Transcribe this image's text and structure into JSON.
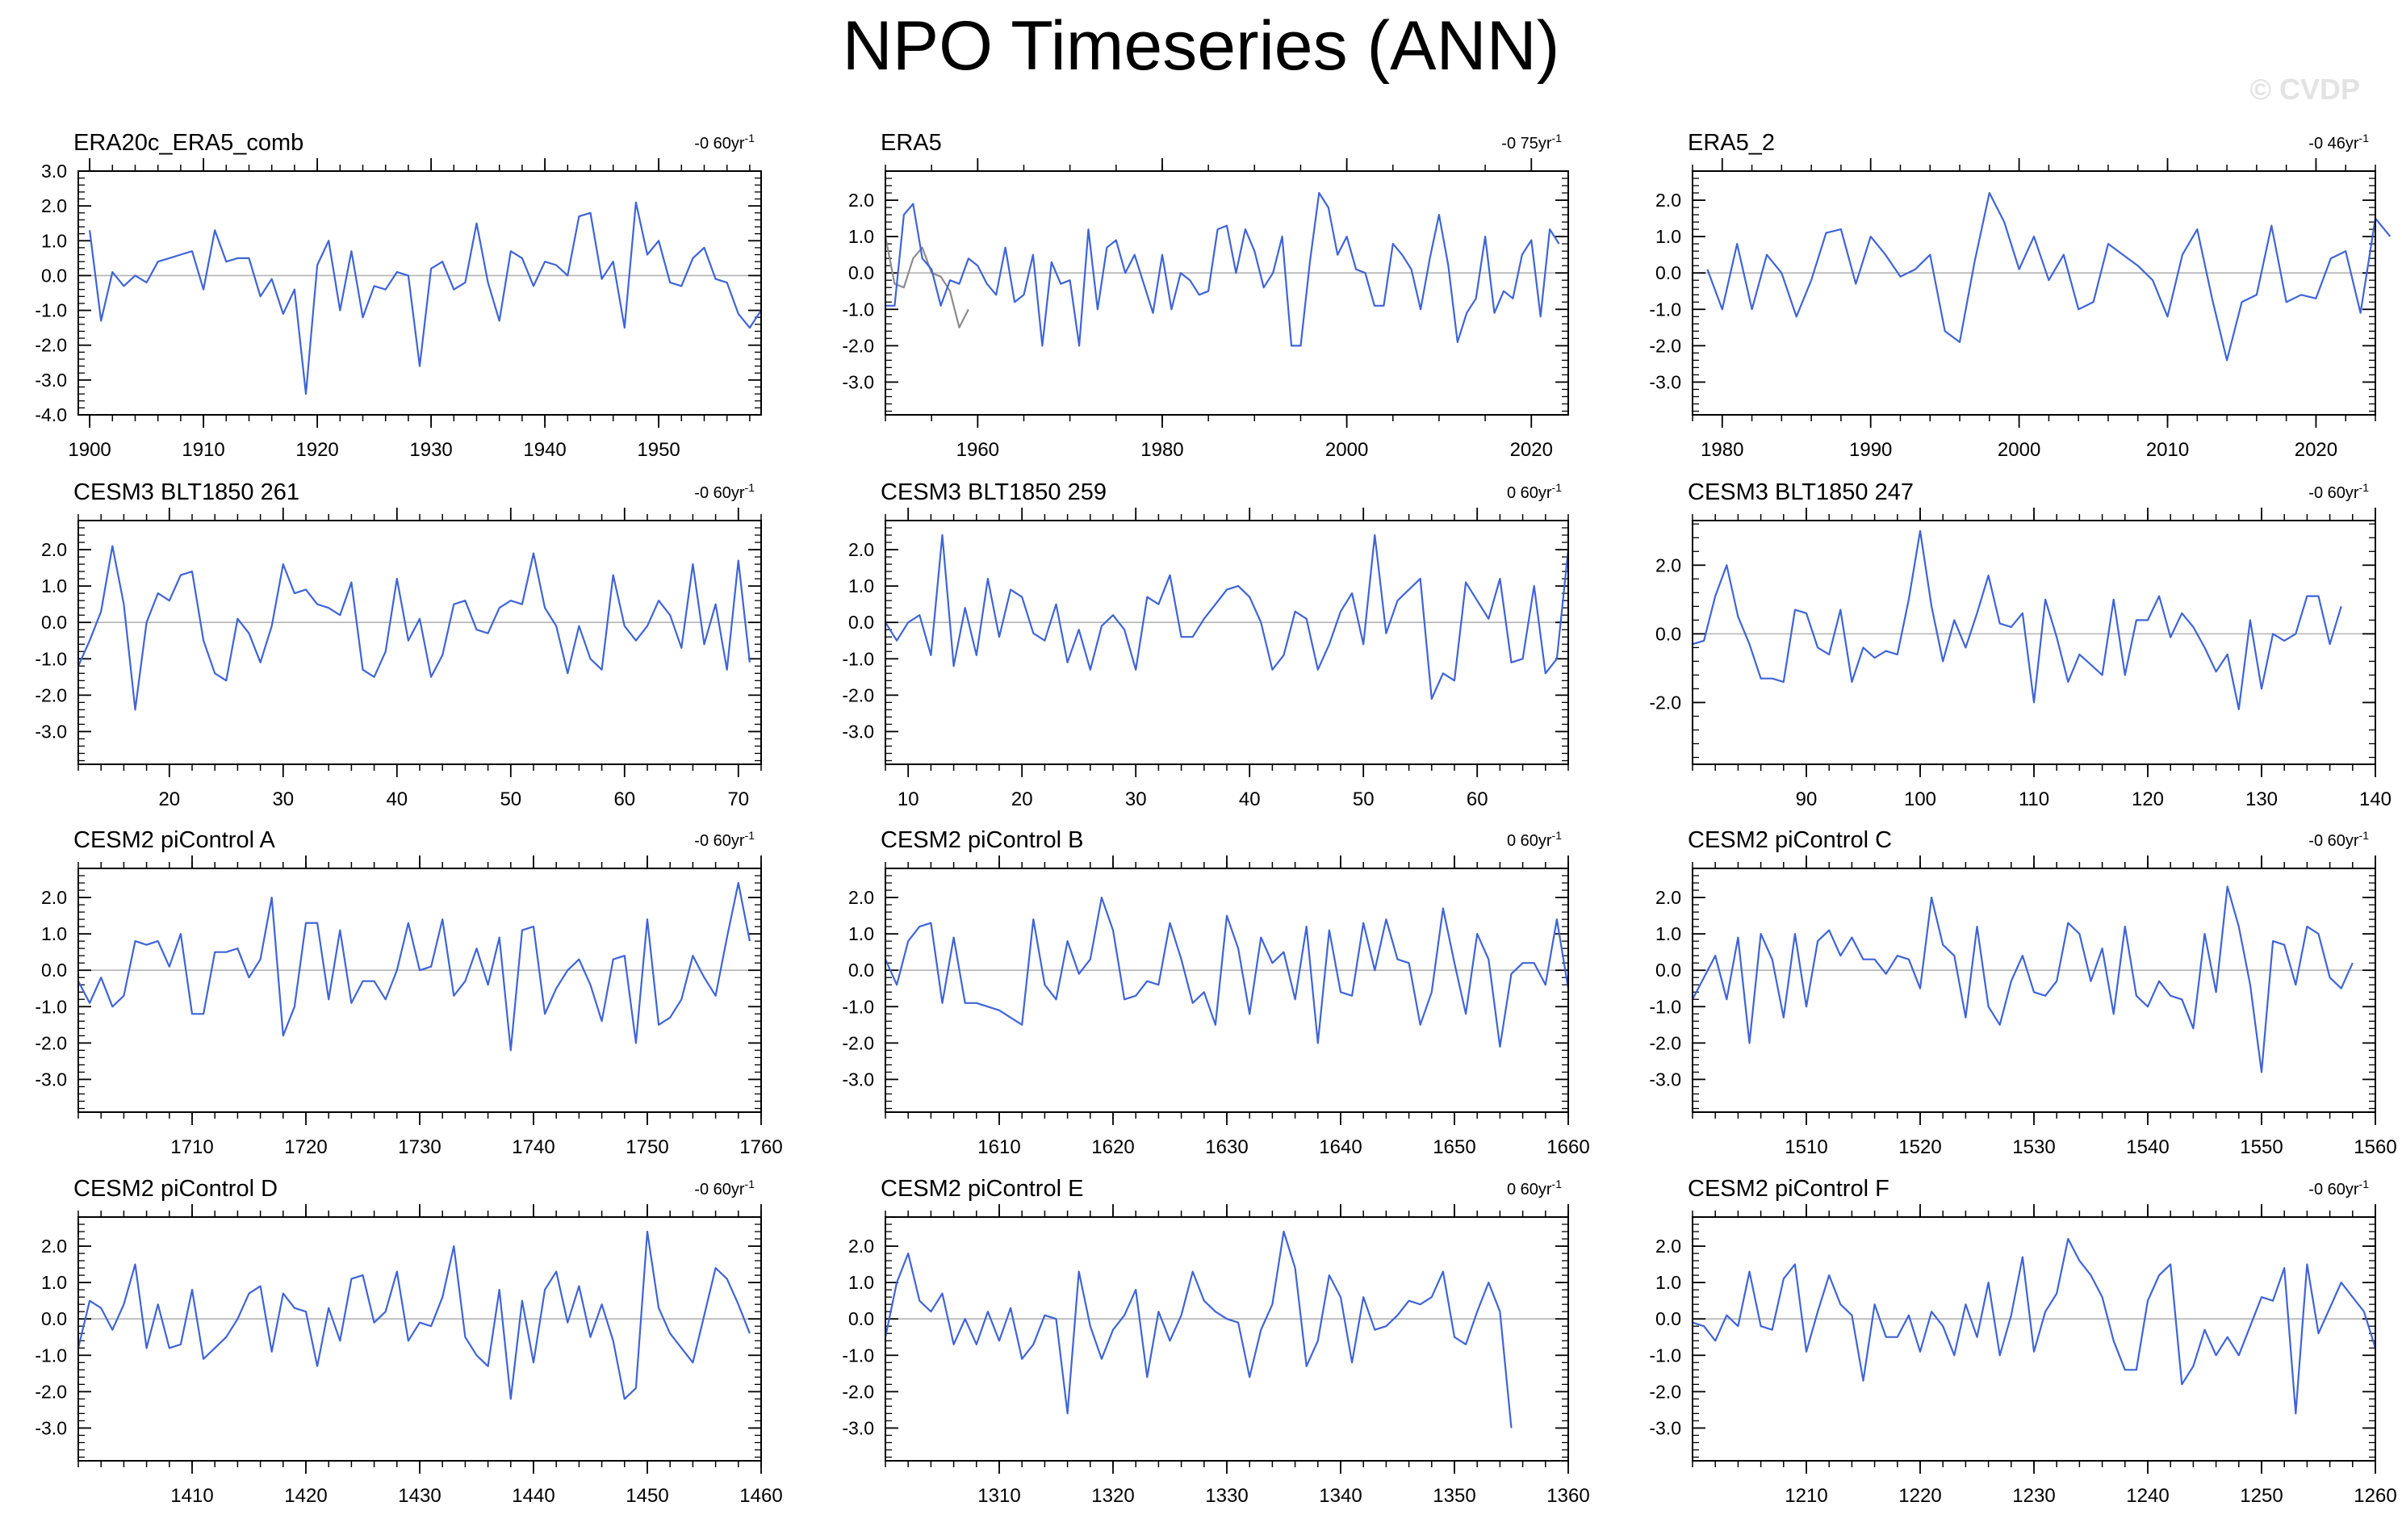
{
  "title": "NPO Timeseries (ANN)",
  "watermark": "© CVDP",
  "colors": {
    "line": "#3f64d6",
    "overlay": "#8c8c8c",
    "zero": "#b4b4b4",
    "frame": "#000000"
  },
  "chart_data": [
    {
      "type": "line",
      "title": "ERA20c_ERA5_comb",
      "trend": "-0 60yr",
      "trend_unit": "-1",
      "xlim": [
        1899,
        1959
      ],
      "ylim": [
        -4.0,
        3.0
      ],
      "yticks": [
        "3.0",
        "2.0",
        "1.0",
        "0.0",
        "-1.0",
        "-2.0",
        "-3.0",
        "-4.0"
      ],
      "xticks": [
        1900,
        1910,
        1920,
        1930,
        1940,
        1950
      ],
      "series": [
        {
          "name": "NPO",
          "x0": 1900,
          "values": [
            1.3,
            -1.3,
            0.1,
            -0.3,
            0.0,
            -0.2,
            0.4,
            0.5,
            0.6,
            0.7,
            -0.4,
            1.3,
            0.4,
            0.5,
            0.5,
            -0.6,
            -0.1,
            -1.1,
            -0.4,
            -3.4,
            0.3,
            1.0,
            -1.0,
            0.7,
            -1.2,
            -0.3,
            -0.4,
            0.1,
            0.0,
            -2.6,
            0.2,
            0.4,
            -0.4,
            -0.2,
            1.5,
            -0.2,
            -1.3,
            0.7,
            0.5,
            -0.3,
            0.4,
            0.3,
            0.0,
            1.7,
            1.8,
            -0.1,
            0.4,
            -1.5,
            2.1,
            0.6,
            1.0,
            -0.2,
            -0.3,
            0.5,
            0.8,
            -0.1,
            -0.2,
            -1.1,
            -1.5,
            -1.0
          ]
        }
      ]
    },
    {
      "type": "line",
      "title": "ERA5",
      "trend": "-0 75yr",
      "trend_unit": "-1",
      "xlim": [
        1950,
        2024
      ],
      "ylim": [
        -3.9,
        2.8
      ],
      "yticks": [
        "2.0",
        "1.0",
        "0.0",
        "-1.0",
        "-2.0",
        "-3.0"
      ],
      "xticks": [
        1960,
        1980,
        2000,
        2020
      ],
      "series": [
        {
          "name": "ERA5",
          "x0": 1950,
          "values": [
            -0.9,
            -0.9,
            1.6,
            1.9,
            0.4,
            0.1,
            -0.9,
            -0.2,
            -0.3,
            0.4,
            0.2,
            -0.3,
            -0.6,
            0.7,
            -0.8,
            -0.6,
            0.5,
            -2.0,
            0.3,
            -0.3,
            -0.2,
            -2.0,
            1.2,
            -1.0,
            0.7,
            0.9,
            0.0,
            0.5,
            -0.3,
            -1.1,
            0.5,
            -1.0,
            0.0,
            -0.2,
            -0.6,
            -0.5,
            1.2,
            1.3,
            0.0,
            1.2,
            0.6,
            -0.4,
            0.0,
            1.0,
            -2.0,
            -2.0,
            0.3,
            2.2,
            1.8,
            0.5,
            1.0,
            0.1,
            0.0,
            -0.9,
            -0.9,
            0.8,
            0.5,
            0.1,
            -1.0,
            0.4,
            1.6,
            0.2,
            -1.9,
            -1.1,
            -0.7,
            1.0,
            -1.1,
            -0.5,
            -0.7,
            0.5,
            0.9,
            -1.2,
            1.2,
            0.8
          ]
        },
        {
          "name": "ERA20c overlap",
          "x0": 1950,
          "color": "overlay",
          "values": [
            1.0,
            -0.3,
            -0.4,
            0.4,
            0.7,
            0.0,
            -0.1,
            -0.5,
            -1.5,
            -1.0
          ]
        }
      ]
    },
    {
      "type": "line",
      "title": "ERA5_2",
      "trend": "-0 46yr",
      "trend_unit": "-1",
      "xlim": [
        1978,
        2024
      ],
      "ylim": [
        -3.9,
        2.8
      ],
      "yticks": [
        "2.0",
        "1.0",
        "0.0",
        "-1.0",
        "-2.0",
        "-3.0"
      ],
      "xticks": [
        1980,
        1990,
        2000,
        2010,
        2020
      ],
      "series": [
        {
          "name": "NPO",
          "x0": 1979,
          "values": [
            0.1,
            -1.0,
            0.8,
            -1.0,
            0.5,
            0.0,
            -1.2,
            -0.2,
            1.1,
            1.2,
            -0.3,
            1.0,
            0.5,
            -0.1,
            0.1,
            0.5,
            -1.6,
            -1.9,
            0.3,
            2.2,
            1.4,
            0.1,
            1.0,
            -0.2,
            0.5,
            -1.0,
            -0.8,
            0.8,
            0.5,
            0.2,
            -0.2,
            -1.2,
            0.5,
            1.2,
            -0.7,
            -2.4,
            -0.8,
            -0.6,
            1.3,
            -0.8,
            -0.6,
            -0.7,
            0.4,
            0.6,
            -1.1,
            1.5,
            1.0
          ]
        }
      ]
    },
    {
      "type": "line",
      "title": "CESM3 BLT1850 261",
      "trend": "-0 60yr",
      "trend_unit": "-1",
      "xlim": [
        12,
        72
      ],
      "ylim": [
        -3.9,
        2.8
      ],
      "yticks": [
        "2.0",
        "1.0",
        "0.0",
        "-1.0",
        "-2.0",
        "-3.0"
      ],
      "xticks": [
        20,
        30,
        40,
        50,
        60,
        70
      ],
      "series": [
        {
          "name": "NPO",
          "x0": 12,
          "values": [
            -1.2,
            -0.5,
            0.3,
            2.1,
            0.5,
            -2.4,
            0.0,
            0.8,
            0.6,
            1.3,
            1.4,
            -0.5,
            -1.4,
            -1.6,
            0.1,
            -0.3,
            -1.1,
            -0.1,
            1.6,
            0.8,
            0.9,
            0.5,
            0.4,
            0.2,
            1.1,
            -1.3,
            -1.5,
            -0.8,
            1.2,
            -0.5,
            0.1,
            -1.5,
            -0.9,
            0.5,
            0.6,
            -0.2,
            -0.3,
            0.4,
            0.6,
            0.5,
            1.9,
            0.4,
            -0.1,
            -1.4,
            -0.1,
            -1.0,
            -1.3,
            1.3,
            -0.1,
            -0.5,
            -0.1,
            0.6,
            0.2,
            -0.7,
            1.6,
            -0.6,
            0.5,
            -1.3,
            1.7,
            -1.1
          ]
        }
      ]
    },
    {
      "type": "line",
      "title": "CESM3 BLT1850 259",
      "trend": "0 60yr",
      "trend_unit": "-1",
      "xlim": [
        8,
        68
      ],
      "ylim": [
        -3.9,
        2.8
      ],
      "yticks": [
        "2.0",
        "1.0",
        "0.0",
        "-1.0",
        "-2.0",
        "-3.0"
      ],
      "xticks": [
        10,
        20,
        30,
        40,
        50,
        60
      ],
      "series": [
        {
          "name": "NPO",
          "x0": 8,
          "values": [
            0.0,
            -0.5,
            0.0,
            0.2,
            -0.9,
            2.4,
            -1.2,
            0.4,
            -0.9,
            1.2,
            -0.4,
            0.9,
            0.7,
            -0.3,
            -0.5,
            0.5,
            -1.1,
            -0.2,
            -1.3,
            -0.1,
            0.2,
            -0.2,
            -1.3,
            0.7,
            0.5,
            1.3,
            -0.4,
            -0.4,
            0.1,
            0.5,
            0.9,
            1.0,
            0.7,
            0.0,
            -1.3,
            -0.9,
            0.3,
            0.1,
            -1.3,
            -0.6,
            0.3,
            0.8,
            -0.6,
            2.4,
            -0.3,
            0.6,
            0.9,
            1.2,
            -2.1,
            -1.4,
            -1.6,
            1.1,
            0.6,
            0.1,
            1.2,
            -1.1,
            -1.0,
            1.0,
            -1.4,
            -1.0,
            2.0
          ]
        }
      ]
    },
    {
      "type": "line",
      "title": "CESM3 BLT1850 247",
      "trend": "-0 60yr",
      "trend_unit": "-1",
      "xlim": [
        80,
        140
      ],
      "ylim": [
        -3.8,
        3.3
      ],
      "yticks": [
        "2.0",
        "0.0",
        "-2.0"
      ],
      "xticks": [
        90,
        100,
        110,
        120,
        130,
        140
      ],
      "series": [
        {
          "name": "NPO",
          "x0": 80,
          "values": [
            -0.3,
            -0.2,
            1.1,
            2.0,
            0.5,
            -0.3,
            -1.3,
            -1.3,
            -1.4,
            0.7,
            0.6,
            -0.4,
            -0.6,
            0.7,
            -1.4,
            -0.4,
            -0.7,
            -0.5,
            -0.6,
            1.0,
            3.0,
            0.8,
            -0.8,
            0.4,
            -0.4,
            0.6,
            1.7,
            0.3,
            0.2,
            0.6,
            -2.0,
            1.0,
            -0.1,
            -1.4,
            -0.6,
            -0.9,
            -1.2,
            1.0,
            -1.2,
            0.4,
            0.4,
            1.1,
            -0.1,
            0.6,
            0.2,
            -0.4,
            -1.1,
            -0.6,
            -2.2,
            0.4,
            -1.6,
            0.0,
            -0.2,
            0.0,
            1.1,
            1.1,
            -0.3,
            0.8
          ]
        }
      ]
    },
    {
      "type": "line",
      "title": "CESM2 piControl A",
      "trend": "-0 60yr",
      "trend_unit": "-1",
      "xlim": [
        1700,
        1760
      ],
      "ylim": [
        -3.9,
        2.8
      ],
      "yticks": [
        "2.0",
        "1.0",
        "0.0",
        "-1.0",
        "-2.0",
        "-3.0"
      ],
      "xticks": [
        1710,
        1720,
        1730,
        1740,
        1750,
        1760
      ],
      "series": [
        {
          "name": "NPO",
          "x0": 1700,
          "values": [
            -0.3,
            -0.9,
            -0.2,
            -1.0,
            -0.7,
            0.8,
            0.7,
            0.8,
            0.1,
            1.0,
            -1.2,
            -1.2,
            0.5,
            0.5,
            0.6,
            -0.2,
            0.3,
            2.0,
            -1.8,
            -1.0,
            1.3,
            1.3,
            -0.8,
            1.1,
            -0.9,
            -0.3,
            -0.3,
            -0.8,
            0.0,
            1.3,
            0.0,
            0.1,
            1.4,
            -0.7,
            -0.3,
            0.6,
            -0.4,
            0.9,
            -2.2,
            1.1,
            1.2,
            -1.2,
            -0.5,
            0.0,
            0.3,
            -0.4,
            -1.4,
            0.3,
            0.4,
            -2.0,
            1.4,
            -1.5,
            -1.3,
            -0.8,
            0.4,
            -0.2,
            -0.7,
            0.9,
            2.4,
            0.8
          ]
        }
      ]
    },
    {
      "type": "line",
      "title": "CESM2 piControl B",
      "trend": "0 60yr",
      "trend_unit": "-1",
      "xlim": [
        1600,
        1660
      ],
      "ylim": [
        -3.9,
        2.8
      ],
      "yticks": [
        "2.0",
        "1.0",
        "0.0",
        "-1.0",
        "-2.0",
        "-3.0"
      ],
      "xticks": [
        1610,
        1620,
        1630,
        1640,
        1650,
        1660
      ],
      "series": [
        {
          "name": "NPO",
          "x0": 1600,
          "values": [
            0.3,
            -0.4,
            0.8,
            1.2,
            1.3,
            -0.9,
            0.9,
            -0.9,
            -0.9,
            -1.0,
            -1.1,
            -1.3,
            -1.5,
            1.4,
            -0.4,
            -0.8,
            0.8,
            -0.1,
            0.3,
            2.0,
            1.1,
            -0.8,
            -0.7,
            -0.3,
            -0.4,
            1.3,
            0.3,
            -0.9,
            -0.6,
            -1.5,
            1.5,
            0.6,
            -1.2,
            0.9,
            0.2,
            0.5,
            -0.8,
            1.2,
            -2.0,
            1.1,
            -0.6,
            -0.7,
            1.3,
            0.0,
            1.4,
            0.3,
            0.2,
            -1.5,
            -0.6,
            1.7,
            0.2,
            -1.2,
            1.0,
            0.3,
            -2.1,
            -0.1,
            0.2,
            0.2,
            -0.4,
            1.4,
            -0.5
          ]
        }
      ]
    },
    {
      "type": "line",
      "title": "CESM2 piControl C",
      "trend": "-0 60yr",
      "trend_unit": "-1",
      "xlim": [
        1500,
        1560
      ],
      "ylim": [
        -3.9,
        2.8
      ],
      "yticks": [
        "2.0",
        "1.0",
        "0.0",
        "-1.0",
        "-2.0",
        "-3.0"
      ],
      "xticks": [
        1510,
        1520,
        1530,
        1540,
        1550,
        1560
      ],
      "series": [
        {
          "name": "NPO",
          "x0": 1500,
          "values": [
            -0.8,
            -0.2,
            0.4,
            -0.8,
            0.9,
            -2.0,
            1.0,
            0.3,
            -1.3,
            1.0,
            -1.0,
            0.8,
            1.1,
            0.4,
            0.9,
            0.3,
            0.3,
            -0.1,
            0.4,
            0.3,
            -0.5,
            2.0,
            0.7,
            0.4,
            -1.3,
            1.2,
            -1.0,
            -1.5,
            -0.3,
            0.4,
            -0.6,
            -0.7,
            -0.3,
            1.3,
            1.0,
            -0.3,
            0.6,
            -1.2,
            1.2,
            -0.7,
            -1.0,
            -0.3,
            -0.7,
            -0.8,
            -1.6,
            1.0,
            -0.6,
            2.3,
            1.2,
            -0.4,
            -2.8,
            0.8,
            0.7,
            -0.4,
            1.2,
            1.0,
            -0.2,
            -0.5,
            0.2
          ]
        }
      ]
    },
    {
      "type": "line",
      "title": "CESM2 piControl D",
      "trend": "-0 60yr",
      "trend_unit": "-1",
      "xlim": [
        1400,
        1460
      ],
      "ylim": [
        -3.9,
        2.8
      ],
      "yticks": [
        "2.0",
        "1.0",
        "0.0",
        "-1.0",
        "-2.0",
        "-3.0"
      ],
      "xticks": [
        1410,
        1420,
        1430,
        1440,
        1450,
        1460
      ],
      "series": [
        {
          "name": "NPO",
          "x0": 1400,
          "values": [
            -0.8,
            0.5,
            0.3,
            -0.3,
            0.4,
            1.5,
            -0.8,
            0.4,
            -0.8,
            -0.7,
            0.8,
            -1.1,
            -0.8,
            -0.5,
            0.0,
            0.7,
            0.9,
            -0.9,
            0.7,
            0.3,
            0.2,
            -1.3,
            0.3,
            -0.6,
            1.1,
            1.2,
            -0.1,
            0.2,
            1.3,
            -0.6,
            -0.1,
            -0.2,
            0.6,
            2.0,
            -0.5,
            -1.0,
            -1.3,
            0.8,
            -2.2,
            0.5,
            -1.2,
            0.8,
            1.3,
            -0.1,
            0.9,
            -0.5,
            0.4,
            -0.6,
            -2.2,
            -1.9,
            2.4,
            0.3,
            -0.4,
            -0.8,
            -1.2,
            0.1,
            1.4,
            1.1,
            0.4,
            -0.4
          ]
        }
      ]
    },
    {
      "type": "line",
      "title": "CESM2 piControl E",
      "trend": "0 60yr",
      "trend_unit": "-1",
      "xlim": [
        1300,
        1360
      ],
      "ylim": [
        -3.9,
        2.8
      ],
      "yticks": [
        "2.0",
        "1.0",
        "0.0",
        "-1.0",
        "-2.0",
        "-3.0"
      ],
      "xticks": [
        1310,
        1320,
        1330,
        1340,
        1350,
        1360
      ],
      "series": [
        {
          "name": "NPO",
          "x0": 1300,
          "values": [
            -0.5,
            1.0,
            1.8,
            0.5,
            0.2,
            0.7,
            -0.7,
            0.0,
            -0.7,
            0.2,
            -0.6,
            0.3,
            -1.1,
            -0.7,
            0.1,
            0.0,
            -2.6,
            1.3,
            -0.2,
            -1.1,
            -0.3,
            0.1,
            0.8,
            -1.6,
            0.2,
            -0.6,
            0.1,
            1.3,
            0.5,
            0.2,
            0.0,
            -0.1,
            -1.6,
            -0.3,
            0.4,
            2.4,
            1.4,
            -1.3,
            -0.6,
            1.2,
            0.6,
            -1.2,
            0.6,
            -0.3,
            -0.2,
            0.1,
            0.5,
            0.4,
            0.6,
            1.3,
            -0.5,
            -0.7,
            0.2,
            1.0,
            0.2,
            -3.0
          ]
        }
      ]
    },
    {
      "type": "line",
      "title": "CESM2 piControl F",
      "trend": "-0 60yr",
      "trend_unit": "-1",
      "xlim": [
        1200,
        1260
      ],
      "ylim": [
        -3.9,
        2.8
      ],
      "yticks": [
        "2.0",
        "1.0",
        "0.0",
        "-1.0",
        "-2.0",
        "-3.0"
      ],
      "xticks": [
        1210,
        1220,
        1230,
        1240,
        1250,
        1260
      ],
      "series": [
        {
          "name": "NPO",
          "x0": 1200,
          "values": [
            -0.1,
            -0.2,
            -0.6,
            0.1,
            -0.2,
            1.3,
            -0.2,
            -0.3,
            1.1,
            1.5,
            -0.9,
            0.2,
            1.2,
            0.4,
            0.1,
            -1.7,
            0.4,
            -0.5,
            -0.5,
            0.1,
            -0.9,
            0.2,
            -0.2,
            -1.0,
            0.4,
            -0.5,
            1.0,
            -1.0,
            0.1,
            1.7,
            -0.9,
            0.2,
            0.7,
            2.2,
            1.6,
            1.2,
            0.6,
            -0.6,
            -1.4,
            -1.4,
            0.5,
            1.2,
            1.5,
            -1.8,
            -1.3,
            -0.3,
            -1.0,
            -0.5,
            -1.0,
            -0.2,
            0.6,
            0.5,
            1.4,
            -2.6,
            1.5,
            -0.4,
            0.3,
            1.0,
            0.6,
            0.2,
            -0.8
          ]
        }
      ]
    }
  ]
}
